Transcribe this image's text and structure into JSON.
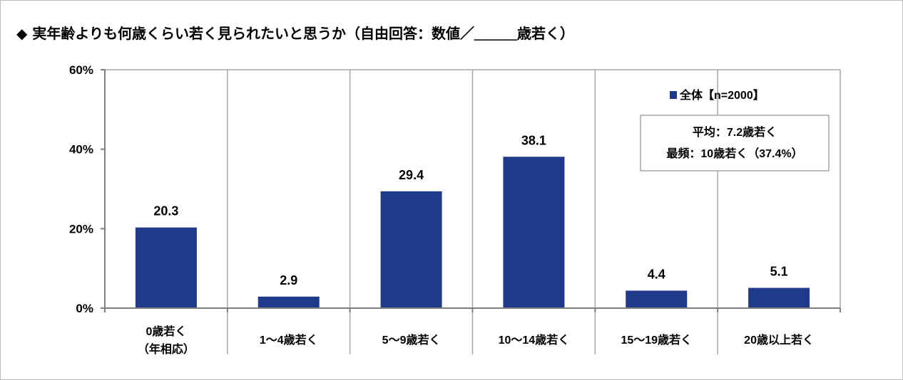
{
  "chart_data": {
    "type": "bar",
    "title": "◆ 実年齢よりも何歳くらい若く見られたいと思うか（自由回答：数値／＿＿＿歳若く）",
    "categories": [
      [
        "0歳若く",
        "（年相応）"
      ],
      [
        "1～4歳若く"
      ],
      [
        "5～9歳若く"
      ],
      [
        "10～14歳若く"
      ],
      [
        "15～19歳若く"
      ],
      [
        "20歳以上若く"
      ]
    ],
    "series": [
      {
        "name": "全体【n=2000】",
        "values": [
          20.3,
          2.9,
          29.4,
          38.1,
          4.4,
          5.1
        ]
      }
    ],
    "data_labels": [
      "20.3",
      "2.9",
      "29.4",
      "38.1",
      "4.4",
      "5.1"
    ],
    "yticks": [
      "0%",
      "20%",
      "40%",
      "60%"
    ],
    "ytick_values": [
      0,
      20,
      40,
      60
    ],
    "ylim": [
      0,
      60
    ],
    "xlabel": "",
    "ylabel": "",
    "grid": "vertical category separators",
    "legend_position": "top-right",
    "annotation": [
      "平均：7.2歳若く",
      "最頻：10歳若く（37.4%）"
    ],
    "colors": {
      "bar": "#1f3a8a",
      "axis": "#7f7f7f",
      "separator": "#a6a6a6",
      "note_border": "#a6a6a6"
    }
  }
}
